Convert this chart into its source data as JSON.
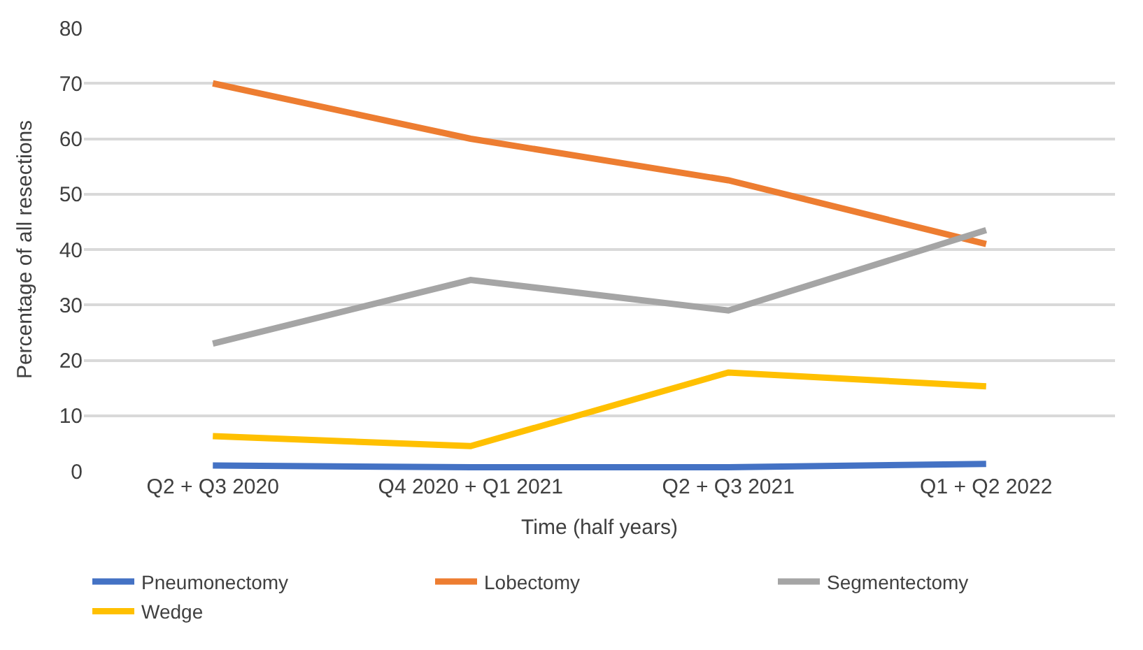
{
  "chart_data": {
    "type": "line",
    "xlabel": "Time (half years)",
    "ylabel": "Percentage of all resections",
    "categories": [
      "Q2 + Q3 2020",
      "Q4 2020 + Q1 2021",
      "Q2 + Q3 2021",
      "Q1 + Q2 2022"
    ],
    "series": [
      {
        "name": "Pneumonectomy",
        "color": "#4472c4",
        "values": [
          1,
          0.7,
          0.7,
          1.3
        ]
      },
      {
        "name": "Lobectomy",
        "color": "#ed7d31",
        "values": [
          70,
          60,
          52.5,
          41
        ]
      },
      {
        "name": "Segmentectomy",
        "color": "#a5a5a5",
        "values": [
          23,
          34.5,
          29,
          43.5
        ]
      },
      {
        "name": "Wedge",
        "color": "#ffc000",
        "values": [
          6.3,
          4.5,
          17.8,
          15.3
        ]
      }
    ],
    "ylim": [
      0,
      80
    ],
    "yticks": [
      0,
      10,
      20,
      30,
      40,
      50,
      60,
      70,
      80
    ],
    "grid": "y",
    "legend": "bottom",
    "marker": "none",
    "line_style": "solid"
  }
}
